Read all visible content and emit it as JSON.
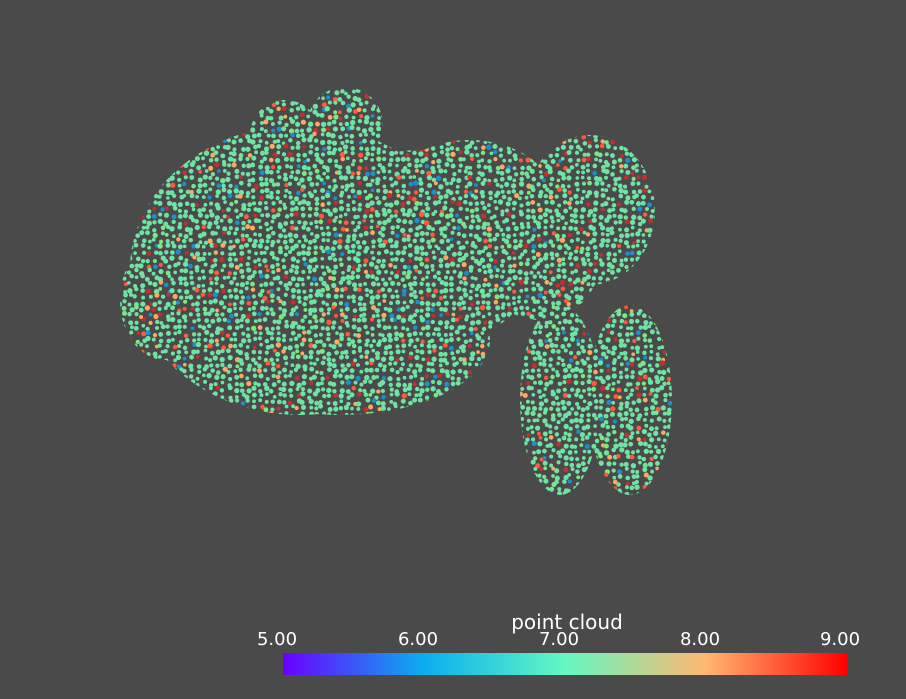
{
  "viewer": {
    "background_color": "#4a4a4a",
    "scalar_bar": {
      "title": "point cloud",
      "range": [
        5.0,
        9.0
      ],
      "ticks": [
        "5.00",
        "6.00",
        "7.00",
        "8.00",
        "9.00"
      ],
      "colormap": [
        "#6a00ff",
        "#0aaef0",
        "#63f8c2",
        "#ffb870",
        "#ff0000"
      ]
    },
    "point_colors": {
      "dominant": "#6ee3a3",
      "secondary": [
        "#ffa860",
        "#1f8ed1",
        "#7ee87e",
        "#ff5a3a",
        "#c23030"
      ]
    }
  }
}
